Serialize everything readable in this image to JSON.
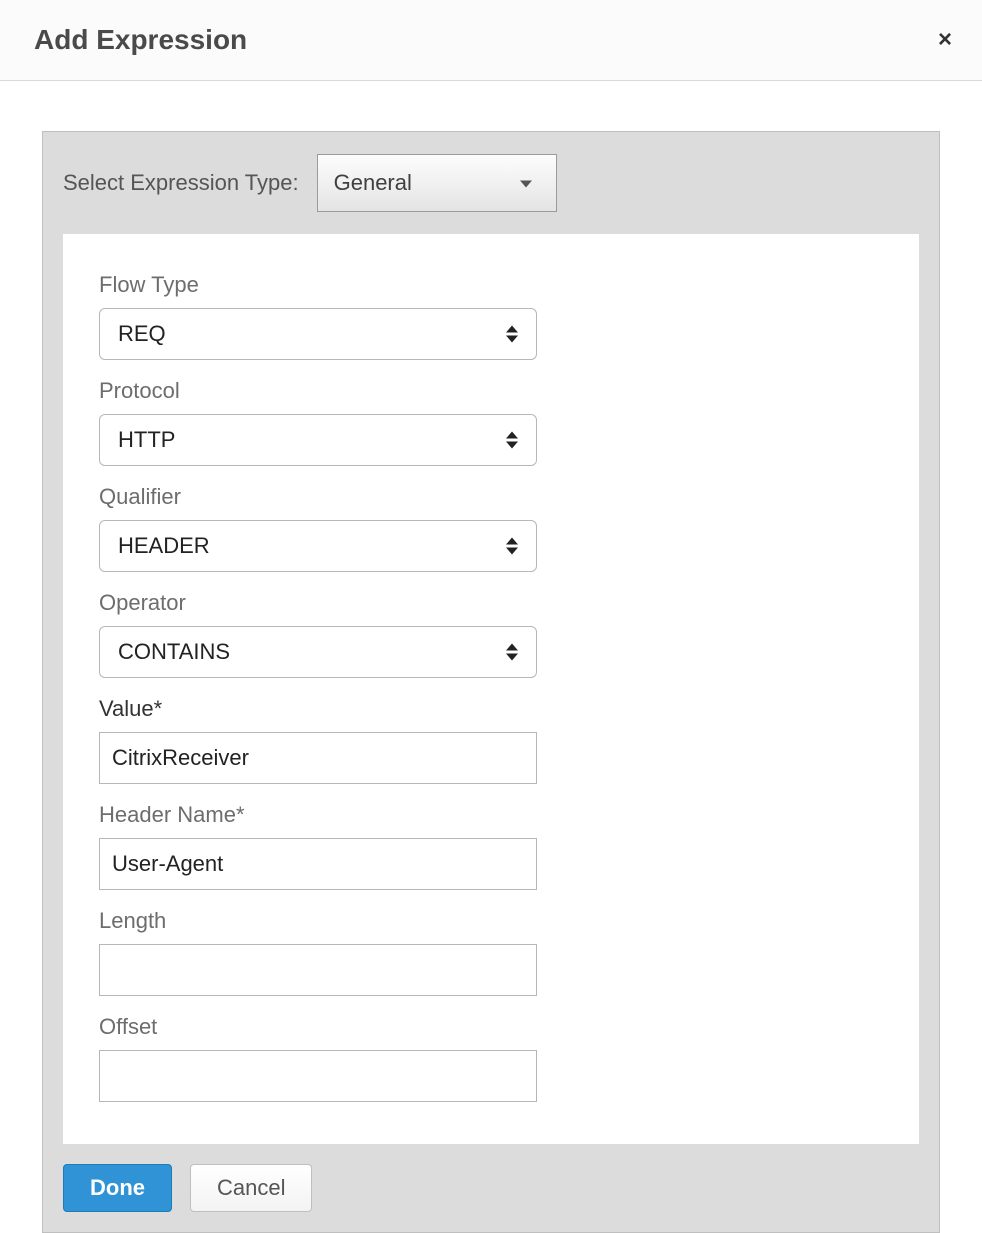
{
  "dialog": {
    "title": "Add Expression",
    "close_icon": "×"
  },
  "expression_type": {
    "label": "Select Expression Type:",
    "value": "General"
  },
  "fields": {
    "flow_type": {
      "label": "Flow Type",
      "value": "REQ"
    },
    "protocol": {
      "label": "Protocol",
      "value": "HTTP"
    },
    "qualifier": {
      "label": "Qualifier",
      "value": "HEADER"
    },
    "operator": {
      "label": "Operator",
      "value": "CONTAINS"
    },
    "value": {
      "label": "Value*",
      "value": "CitrixReceiver"
    },
    "header_name": {
      "label": "Header Name*",
      "value": "User-Agent"
    },
    "length": {
      "label": "Length",
      "value": ""
    },
    "offset": {
      "label": "Offset",
      "value": ""
    }
  },
  "buttons": {
    "done": "Done",
    "cancel": "Cancel"
  },
  "colors": {
    "header_bg": "#fbfbfb",
    "panel_bg": "#dcdcdc",
    "border": "#bfbfbf",
    "primary_btn": "#2f93d6",
    "text_label": "#6d6d6d",
    "text_strong": "#333333"
  }
}
